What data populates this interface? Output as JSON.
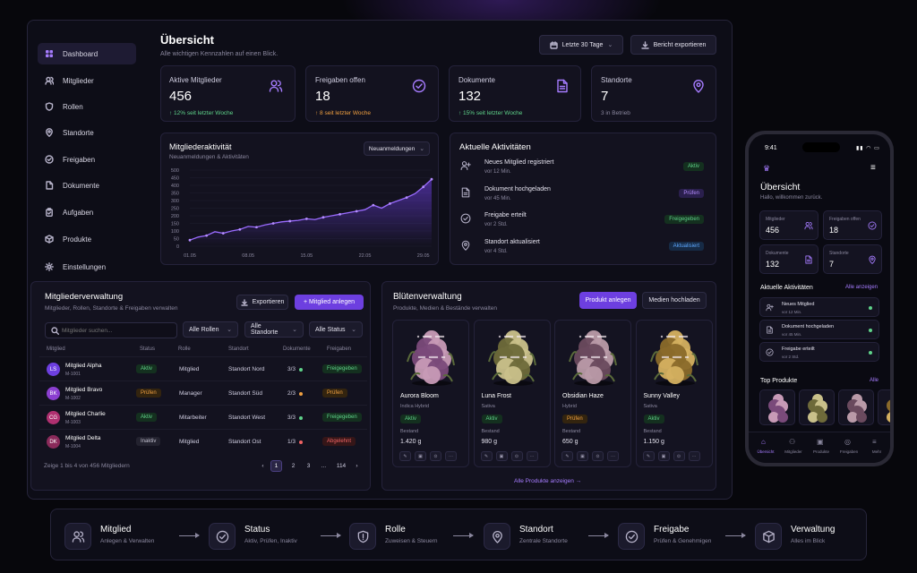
{
  "brand": {
    "accent": "#6d3fe0",
    "bg": "#07070c",
    "panel": "#0d0d17"
  },
  "sidebar": {
    "items": [
      {
        "label": "Dashboard",
        "icon": "grid-icon",
        "active": true
      },
      {
        "label": "Mitglieder",
        "icon": "users-icon"
      },
      {
        "label": "Rollen",
        "icon": "shield-icon"
      },
      {
        "label": "Standorte",
        "icon": "map-pin-icon"
      },
      {
        "label": "Freigaben",
        "icon": "check-circle-icon"
      },
      {
        "label": "Dokumente",
        "icon": "file-icon"
      },
      {
        "label": "Aufgaben",
        "icon": "clipboard-icon"
      },
      {
        "label": "Produkte",
        "icon": "box-icon"
      },
      {
        "label": "Einstellungen",
        "icon": "gear-icon"
      }
    ]
  },
  "header": {
    "title": "Übersicht",
    "subtitle": "Alle wichtigen Kennzahlen auf einen Blick.",
    "period": "Letzte 30 Tage",
    "export": "Bericht exportieren"
  },
  "kpis": [
    {
      "label": "Aktive Mitglieder",
      "value": "456",
      "delta": "↑ 12% seit letzter Woche",
      "color": "#5fd38a",
      "icon": "users-icon"
    },
    {
      "label": "Freigaben offen",
      "value": "18",
      "delta": "↑ 8 seit letzter Woche",
      "color": "#f0a040",
      "icon": "check-circle-icon"
    },
    {
      "label": "Dokumente",
      "value": "132",
      "delta": "↑ 15% seit letzter Woche",
      "color": "#5fd38a",
      "icon": "file-icon"
    },
    {
      "label": "Standorte",
      "value": "7",
      "delta": "3 in Betrieb",
      "color": "#8a879e",
      "icon": "map-pin-icon"
    }
  ],
  "activity_chart": {
    "title": "Mitgliederaktivität",
    "subtitle": "Neuanmeldungen & Aktivitäten",
    "filter": "Neuanmeldungen"
  },
  "chart_data": {
    "type": "area",
    "title": "Mitgliederaktivität",
    "x": [
      "01.05",
      "02.05",
      "03.05",
      "04.05",
      "05.05",
      "06.05",
      "07.05",
      "08.05",
      "09.05",
      "10.05",
      "11.05",
      "12.05",
      "13.05",
      "14.05",
      "15.05",
      "16.05",
      "17.05",
      "18.05",
      "19.05",
      "20.05",
      "21.05",
      "22.05",
      "23.05",
      "24.05",
      "25.05",
      "26.05",
      "27.05",
      "28.05",
      "29.05",
      "30.05"
    ],
    "xticks": [
      "01.05",
      "08.05",
      "15.05",
      "22.05",
      "29.05"
    ],
    "yticks": [
      "0",
      "50",
      "100",
      "150",
      "200",
      "250",
      "300",
      "350",
      "400",
      "450",
      "500"
    ],
    "values": [
      40,
      60,
      70,
      95,
      85,
      100,
      110,
      130,
      125,
      140,
      150,
      160,
      165,
      170,
      180,
      175,
      190,
      200,
      210,
      220,
      230,
      240,
      270,
      250,
      280,
      300,
      320,
      345,
      390,
      440
    ],
    "ylim": [
      0,
      500
    ],
    "series": [
      {
        "values": [
          40,
          60,
          70,
          95,
          85,
          100,
          110,
          130,
          125,
          140,
          150,
          160,
          165,
          170,
          180,
          175,
          190,
          200,
          210,
          220,
          230,
          240,
          270,
          250,
          280,
          300,
          320,
          345,
          390,
          440
        ]
      }
    ]
  },
  "activities": {
    "title": "Aktuelle Aktivitäten",
    "items": [
      {
        "title": "Neues Mitglied registriert",
        "time": "vor 12 Min.",
        "badge": "Aktiv",
        "cls": "b-green",
        "icon": "user-plus-icon"
      },
      {
        "title": "Dokument hochgeladen",
        "time": "vor 45 Min.",
        "badge": "Prüfen",
        "cls": "b-purple",
        "icon": "file-icon"
      },
      {
        "title": "Freigabe erteilt",
        "time": "vor 2 Std.",
        "badge": "Freigegeben",
        "cls": "b-green",
        "icon": "check-circle-icon"
      },
      {
        "title": "Standort aktualisiert",
        "time": "vor 4 Std.",
        "badge": "Aktualisiert",
        "cls": "b-blue",
        "icon": "map-pin-icon"
      }
    ]
  },
  "members": {
    "title": "Mitgliederverwaltung",
    "subtitle": "Mitglieder, Rollen, Standorte & Freigaben verwalten",
    "export": "Exportieren",
    "add": "+ Mitglied anlegen",
    "search_placeholder": "Mitglieder suchen...",
    "filters": [
      "Alle Rollen",
      "Alle Standorte",
      "Alle Status"
    ],
    "columns": [
      "Mitglied",
      "Status",
      "Rolle",
      "Standort",
      "Dokumente",
      "Freigaben"
    ],
    "rows": [
      {
        "initials": "LS",
        "name": "Mitglied Alpha",
        "id": "M-1001",
        "status": "Aktiv",
        "scls": "b-green",
        "role": "Mitglied",
        "site": "Standort Nord",
        "docs": "3/3",
        "dot": "#5fd38a",
        "release": "Freigegeben",
        "rcls": "b-green",
        "avatar": "#6d3fe0"
      },
      {
        "initials": "BK",
        "name": "Mitglied Bravo",
        "id": "M-1002",
        "status": "Prüfen",
        "scls": "b-orange",
        "role": "Manager",
        "site": "Standort Süd",
        "docs": "2/3",
        "dot": "#f0a040",
        "release": "Prüfen",
        "rcls": "b-orange",
        "avatar": "#8b3fd0"
      },
      {
        "initials": "CG",
        "name": "Mitglied Charlie",
        "id": "M-1003",
        "status": "Aktiv",
        "scls": "b-green",
        "role": "Mitarbeiter",
        "site": "Standort West",
        "docs": "3/3",
        "dot": "#5fd38a",
        "release": "Freigegeben",
        "rcls": "b-green",
        "avatar": "#b03070"
      },
      {
        "initials": "DK",
        "name": "Mitglied Delta",
        "id": "M-1004",
        "status": "Inaktiv",
        "scls": "b-gray",
        "role": "Mitglied",
        "site": "Standort Ost",
        "docs": "1/3",
        "dot": "#f06363",
        "release": "Abgelehnt",
        "rcls": "b-red",
        "avatar": "#8a2a5a"
      }
    ],
    "footer": "Zeige 1 bis 4 von 456 Mitgliedern",
    "pages": [
      "‹",
      "1",
      "2",
      "3",
      "...",
      "114",
      "›"
    ]
  },
  "products": {
    "title": "Blütenverwaltung",
    "subtitle": "Produkte, Medien & Bestände verwalten",
    "add": "Produkt anlegen",
    "upload": "Medien hochladen",
    "stock_label": "Bestand",
    "all_link": "Alle Produkte anzeigen →",
    "items": [
      {
        "name": "Aurora Bloom",
        "type": "Indica Hybrid",
        "badge": "Aktiv",
        "cls": "b-green",
        "stock": "1.420 g",
        "c1": "#7a4a7a",
        "c2": "#c79ab6"
      },
      {
        "name": "Luna Frost",
        "type": "Sativa",
        "badge": "Aktiv",
        "cls": "b-green",
        "stock": "980 g",
        "c1": "#6e6a3a",
        "c2": "#c9c08a"
      },
      {
        "name": "Obsidian Haze",
        "type": "Hybrid",
        "badge": "Prüfen",
        "cls": "b-orange",
        "stock": "650 g",
        "c1": "#6a4a5e",
        "c2": "#b99aa8"
      },
      {
        "name": "Sunny Valley",
        "type": "Sativa",
        "badge": "Aktiv",
        "cls": "b-green",
        "stock": "1.150 g",
        "c1": "#8a6a2a",
        "c2": "#d4b060"
      }
    ]
  },
  "phone": {
    "time": "9:41",
    "title": "Übersicht",
    "subtitle": "Hallo, willkommen zurück.",
    "kpis": [
      {
        "label": "Mitglieder",
        "value": "456"
      },
      {
        "label": "Freigaben offen",
        "value": "18"
      },
      {
        "label": "Dokumente",
        "value": "132"
      },
      {
        "label": "Standorte",
        "value": "7"
      }
    ],
    "activities_title": "Aktuelle Aktivitäten",
    "activities_link": "Alle anzeigen",
    "activities": [
      {
        "title": "Neues Mitglied",
        "time": "vor 12 Min."
      },
      {
        "title": "Dokument hochgeladen",
        "time": "vor 45 Min."
      },
      {
        "title": "Freigabe erteilt",
        "time": "vor 2 Std."
      }
    ],
    "top_title": "Top Produkte",
    "top_link": "Alle",
    "nav": [
      "Übersicht",
      "Mitglieder",
      "Produkte",
      "Freigaben",
      "Mehr"
    ]
  },
  "flow": [
    {
      "title": "Mitglied",
      "sub": "Anlegen & Verwalten",
      "icon": "users-icon"
    },
    {
      "title": "Status",
      "sub": "Aktiv, Prüfen, Inaktiv",
      "icon": "check-circle-icon"
    },
    {
      "title": "Rolle",
      "sub": "Zuweisen & Steuern",
      "icon": "shield-icon"
    },
    {
      "title": "Standort",
      "sub": "Zentrale Standorte",
      "icon": "map-pin-icon"
    },
    {
      "title": "Freigabe",
      "sub": "Prüfen & Genehmigen",
      "icon": "check-circle-icon"
    },
    {
      "title": "Verwaltung",
      "sub": "Alles im Blick",
      "icon": "box-icon"
    }
  ]
}
